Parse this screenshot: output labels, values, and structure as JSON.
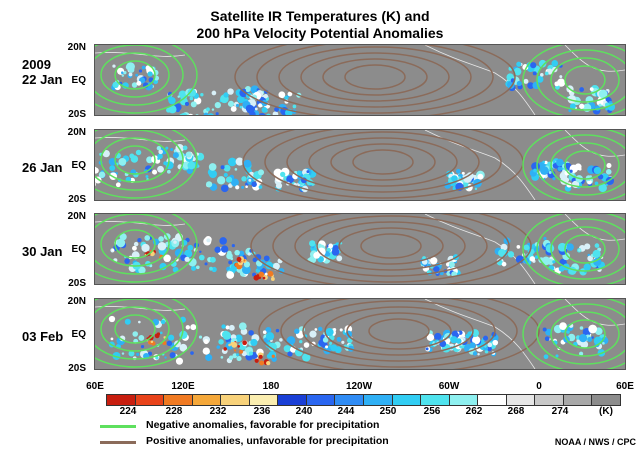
{
  "title": {
    "line1": "Satellite IR Temperatures (K) and",
    "line2": "200 hPa Velocity Potential Anomalies"
  },
  "panels": [
    {
      "year": "2009",
      "date": "22 Jan"
    },
    {
      "date": "26 Jan"
    },
    {
      "date": "30 Jan"
    },
    {
      "date": "03 Feb"
    }
  ],
  "lat_labels": [
    "20N",
    "EQ",
    "20S"
  ],
  "lon_labels": [
    "60E",
    "120E",
    "180",
    "120W",
    "60W",
    "0",
    "60E"
  ],
  "colorbar": {
    "colors": [
      "#c81e0f",
      "#e8431a",
      "#f07a22",
      "#f5a83a",
      "#f8d27a",
      "#fbeeb0",
      "#1a3fd6",
      "#2a66f0",
      "#2f8cf5",
      "#2fb0f5",
      "#31cdf3",
      "#4fe3ee",
      "#8ef0f0",
      "#ffffff",
      "#e6e6e6",
      "#c8c8c8",
      "#a8a8a8",
      "#8c8c8c"
    ],
    "tick_labels": [
      "224",
      "228",
      "232",
      "236",
      "240",
      "244",
      "250",
      "256",
      "262",
      "268",
      "274",
      "(K)"
    ]
  },
  "legend": {
    "negative": {
      "label": "Negative anomalies, favorable for precipitation",
      "color": "#5ee05e"
    },
    "positive": {
      "label": "Positive anomalies, unfavorable for precipitation",
      "color": "#8b6b5a"
    }
  },
  "credit": "NOAA / NWS / CPC"
}
